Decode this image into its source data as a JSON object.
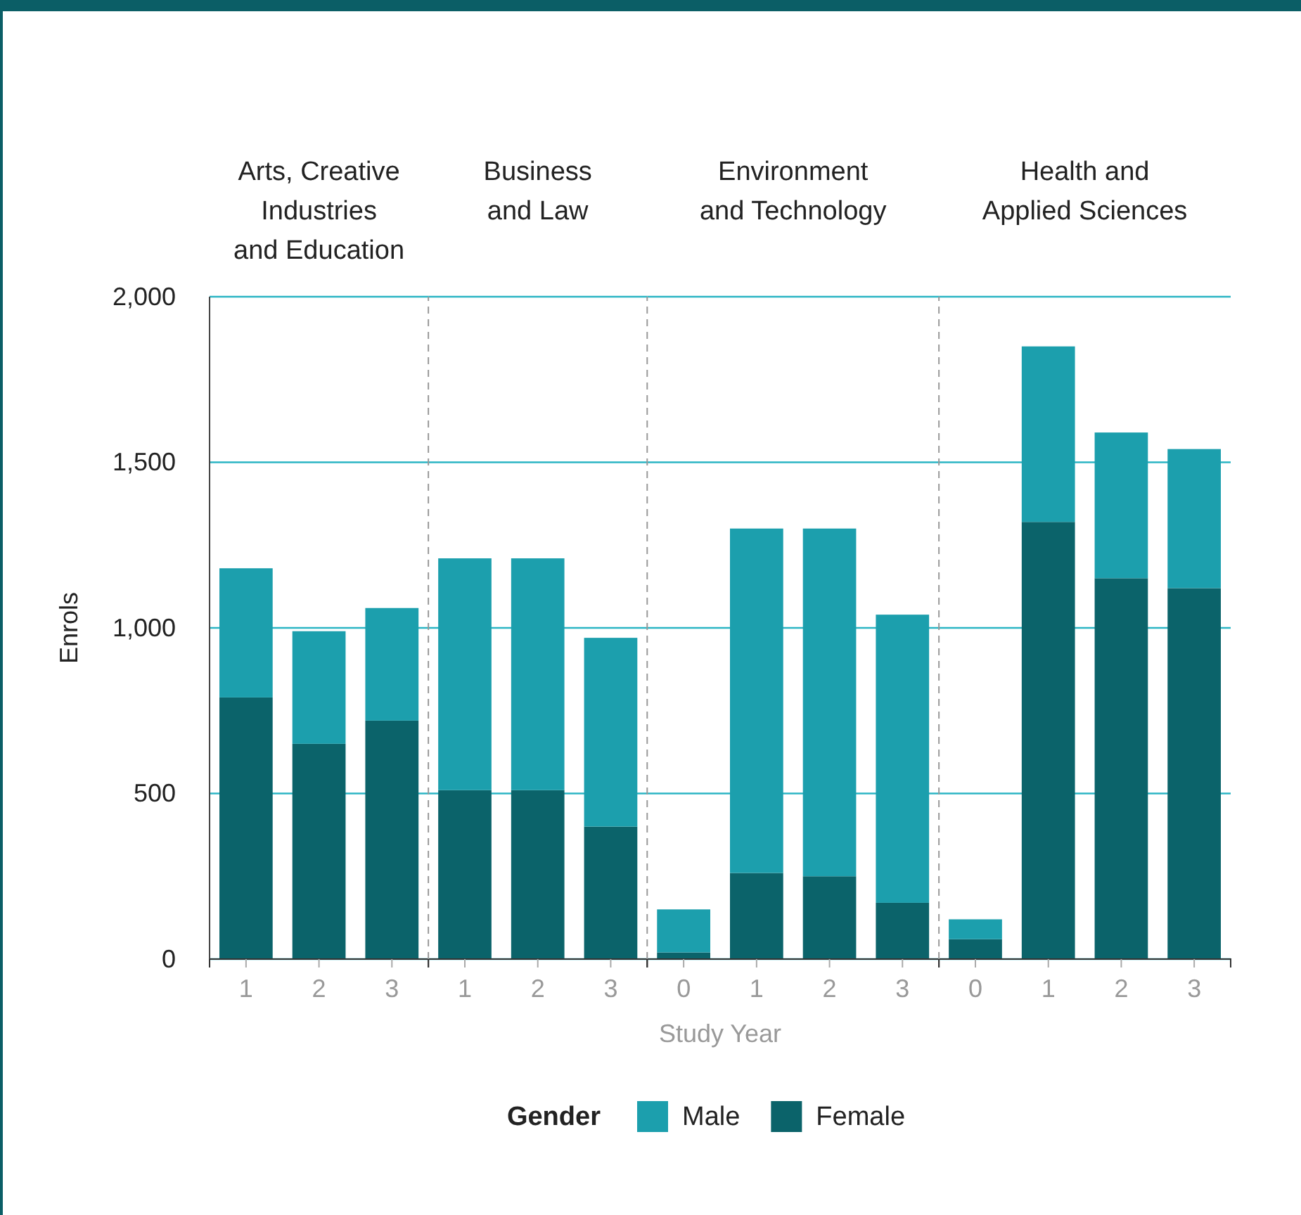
{
  "chart_data": [
    {
      "type": "bar",
      "title": "Arts, Creative\nIndustries\nand Education",
      "categories": [
        "1",
        "2",
        "3"
      ],
      "stacked": true,
      "ylim": [
        0,
        2000
      ],
      "yticks": [
        0,
        500,
        {
          "value": 1000,
          "label": "1,000"
        },
        {
          "value": 1500,
          "label": "1,500"
        },
        {
          "value": 2000,
          "label": "2,000"
        }
      ],
      "grid": "y",
      "ylabel": "Enrols",
      "legend": "bottom",
      "legend_title": "Gender",
      "series": [
        {
          "name": "Female",
          "color": "#0b636a",
          "values": [
            790,
            650,
            720
          ]
        },
        {
          "name": "Male",
          "color": "#1c9fad",
          "values": [
            390,
            340,
            340
          ]
        }
      ]
    },
    {
      "type": "bar",
      "title": "Business\nand Law",
      "categories": [
        "1",
        "2",
        "3"
      ],
      "stacked": true,
      "ylim": [
        0,
        2000
      ],
      "grid": "y",
      "tick_labels": "x",
      "series": [
        {
          "color": "#0b636a",
          "values": [
            510,
            510,
            400
          ]
        },
        {
          "color": "#1c9fad",
          "values": [
            700,
            700,
            570
          ]
        }
      ]
    },
    {
      "type": "bar",
      "title": "Environment\nand Technology",
      "categories": [
        "0",
        "1",
        "2",
        "3"
      ],
      "stacked": true,
      "ylim": [
        0,
        2000
      ],
      "grid": "y",
      "tick_labels": "x",
      "xlabel": "Study Year",
      "series": [
        {
          "color": "#0b636a",
          "values": [
            20,
            260,
            250,
            170
          ]
        },
        {
          "color": "#1c9fad",
          "values": [
            130,
            1040,
            1050,
            870
          ]
        }
      ]
    },
    {
      "type": "bar",
      "title": "Health and\nApplied Sciences",
      "categories": [
        "0",
        "1",
        "2",
        "3"
      ],
      "stacked": true,
      "ylim": [
        0,
        2000
      ],
      "grid": "y",
      "tick_labels": "x",
      "series": [
        {
          "color": "#0b636a",
          "values": [
            60,
            1320,
            1150,
            1120
          ]
        },
        {
          "color": "#1c9fad",
          "values": [
            60,
            530,
            440,
            420
          ]
        }
      ]
    }
  ]
}
